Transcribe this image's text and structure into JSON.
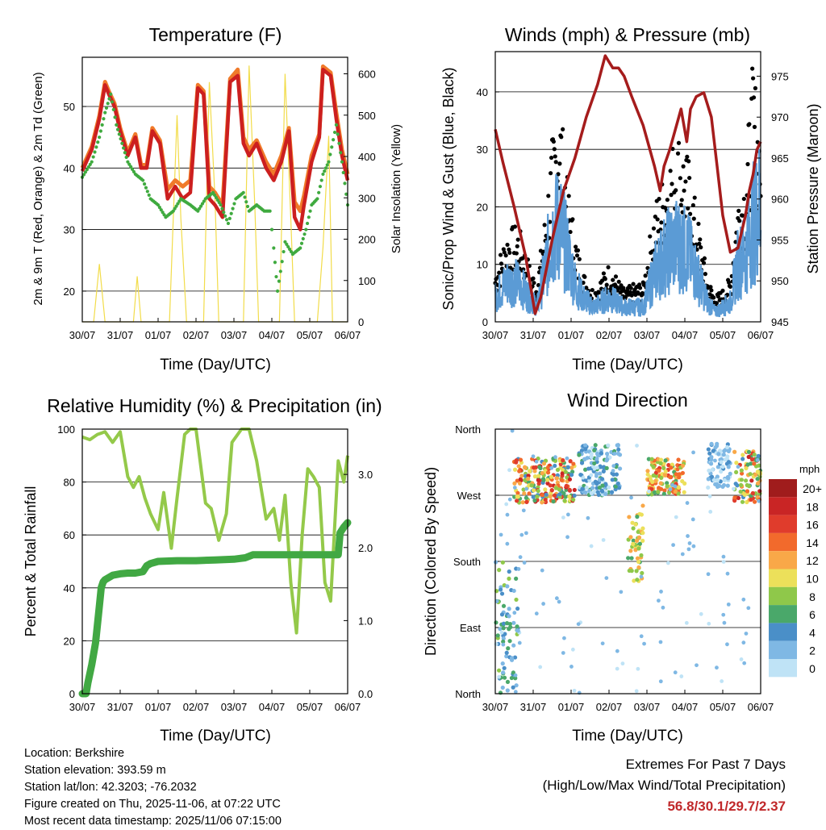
{
  "colors": {
    "t2m": "#cc1f1f",
    "t9m": "#f07a2a",
    "td": "#3faa3f",
    "solar": "#f2dc4a",
    "wind": "#5b9bd5",
    "gust": "#000000",
    "pressure": "#a51c1c",
    "rh": "#94c94a",
    "precip": "#41a843"
  },
  "panels": {
    "temperature": {
      "title": "Temperature (F)",
      "xlabel": "Time (Day/UTC)",
      "ylabel_left": "2m & 9m T (Red, Orange) & 2m Td (Green)",
      "ylabel_right": "Solar Insolation (Yellow)"
    },
    "winds": {
      "title": "Winds (mph) & Pressure (mb)",
      "xlabel": "Time (Day/UTC)",
      "ylabel_left": "Sonic/Prop Wind & Gust (Blue, Black)",
      "ylabel_right": "Station Pressure (Maroon)"
    },
    "humidity": {
      "title": "Relative Humidity (%) & Precipitation (in)",
      "xlabel": "Time (Day/UTC)",
      "ylabel_left": "Percent & Total Rainfall"
    },
    "direction": {
      "title": "Wind Direction",
      "xlabel": "Time (Day/UTC)",
      "ylabel_left": "Direction (Colored By Speed)",
      "legend_title": "mph"
    }
  },
  "chart_data": [
    {
      "type": "line",
      "title": "Temperature (F)",
      "xlabel": "Time (Day/UTC)",
      "x_ticks": [
        "30/07",
        "31/07",
        "01/07",
        "02/07",
        "03/07",
        "04/07",
        "05/07",
        "06/07"
      ],
      "xlim": [
        0,
        7
      ],
      "ylim": [
        15,
        58
      ],
      "y_ticks": [
        20,
        30,
        40,
        50
      ],
      "y2lim": [
        0,
        640
      ],
      "y2_ticks": [
        0,
        100,
        200,
        300,
        400,
        500,
        600
      ],
      "series": [
        {
          "name": "2m T",
          "axis": "left",
          "x": [
            0,
            0.25,
            0.45,
            0.6,
            0.7,
            0.85,
            1.0,
            1.2,
            1.4,
            1.55,
            1.7,
            1.85,
            2.05,
            2.25,
            2.45,
            2.65,
            2.85,
            3.05,
            3.2,
            3.35,
            3.5,
            3.7,
            3.9,
            4.1,
            4.25,
            4.4,
            4.6,
            4.85,
            5.05,
            5.25,
            5.45,
            5.6,
            5.75,
            5.85,
            6.05,
            6.25,
            6.35,
            6.55,
            6.7,
            6.85,
            7.0
          ],
          "y": [
            39.5,
            43,
            48,
            53.5,
            52,
            50,
            46,
            42,
            45,
            40,
            40,
            46,
            44,
            35,
            37,
            35,
            36,
            53,
            52,
            35,
            34,
            32,
            54,
            55,
            44,
            42,
            44,
            40,
            38,
            41,
            46,
            32,
            30,
            34,
            41,
            45,
            56,
            55,
            48,
            42,
            38
          ]
        },
        {
          "name": "9m T",
          "axis": "left",
          "x": [
            0,
            0.25,
            0.45,
            0.6,
            0.7,
            0.85,
            1.0,
            1.2,
            1.4,
            1.55,
            1.7,
            1.85,
            2.05,
            2.25,
            2.45,
            2.65,
            2.85,
            3.05,
            3.2,
            3.35,
            3.5,
            3.7,
            3.9,
            4.1,
            4.25,
            4.4,
            4.6,
            4.85,
            5.05,
            5.25,
            5.45,
            5.6,
            5.75,
            5.85,
            6.05,
            6.25,
            6.35,
            6.55,
            6.7,
            6.85,
            7.0
          ],
          "y": [
            40,
            43.5,
            48.5,
            54,
            52.5,
            50.5,
            46.5,
            42.5,
            45.5,
            40.5,
            40.5,
            46.5,
            44.5,
            36.5,
            38,
            37,
            38,
            53.5,
            52.5,
            37,
            36,
            34,
            54.5,
            56,
            45,
            43,
            44.5,
            41,
            39,
            42,
            46.5,
            34.5,
            33,
            35.5,
            42,
            45.5,
            56.5,
            55.5,
            49,
            43,
            39
          ]
        },
        {
          "name": "2m Td",
          "axis": "left",
          "x": [
            0,
            0.25,
            0.45,
            0.6,
            0.75,
            0.9,
            1.05,
            1.2,
            1.4,
            1.6,
            1.8,
            2.0,
            2.2,
            2.4,
            2.6,
            2.85,
            3.05,
            3.25,
            3.45,
            3.65,
            3.85,
            4.05,
            4.25,
            4.4,
            4.6,
            4.8,
            4.95,
            5.05,
            5.15,
            5.35,
            5.55,
            5.75,
            5.9,
            6.05,
            6.2,
            6.35,
            6.5,
            6.7,
            6.85,
            7.0
          ],
          "y": [
            38.5,
            41,
            45,
            49,
            52,
            47,
            44,
            41,
            39,
            38,
            35,
            34,
            32,
            33,
            35,
            34,
            33,
            35,
            36,
            34,
            31,
            35,
            36,
            33,
            34,
            33,
            33,
            27,
            20,
            28,
            26,
            27,
            30,
            34,
            35,
            39,
            41,
            47,
            41,
            34
          ]
        },
        {
          "name": "Solar Insolation",
          "axis": "right",
          "x": [
            0,
            0.3,
            0.45,
            0.6,
            1.0,
            1.35,
            1.45,
            1.55,
            2.0,
            2.3,
            2.5,
            2.6,
            2.75,
            3.0,
            3.2,
            3.35,
            3.5,
            3.6,
            3.75,
            4.0,
            4.25,
            4.4,
            4.55,
            4.65,
            4.8,
            5.0,
            5.2,
            5.35,
            5.5,
            5.6,
            5.75,
            6.0,
            6.2,
            6.35,
            6.5,
            6.6,
            6.8,
            7.0
          ],
          "y": [
            0,
            0,
            140,
            0,
            0,
            0,
            110,
            0,
            0,
            0,
            500,
            250,
            0,
            0,
            0,
            580,
            300,
            0,
            0,
            0,
            0,
            620,
            280,
            0,
            0,
            0,
            0,
            600,
            250,
            0,
            0,
            0,
            0,
            180,
            450,
            0,
            0,
            0
          ]
        }
      ]
    },
    {
      "type": "line",
      "title": "Winds (mph) & Pressure (mb)",
      "xlabel": "Time (Day/UTC)",
      "x_ticks": [
        "30/07",
        "31/07",
        "01/07",
        "02/07",
        "03/07",
        "04/07",
        "05/07",
        "06/07"
      ],
      "xlim": [
        0,
        7
      ],
      "ylim": [
        0,
        47
      ],
      "y_ticks": [
        0,
        10,
        20,
        30,
        40
      ],
      "y2lim": [
        945,
        978
      ],
      "y2_ticks": [
        945,
        950,
        955,
        960,
        965,
        970,
        975
      ],
      "series": [
        {
          "name": "Wind",
          "axis": "left",
          "x": [
            0,
            0.3,
            0.6,
            0.9,
            1.1,
            1.3,
            1.5,
            1.7,
            1.9,
            2.1,
            2.3,
            2.6,
            3.0,
            3.4,
            3.7,
            3.9,
            4.2,
            4.5,
            4.8,
            5.1,
            5.4,
            5.6,
            5.8,
            6.0,
            6.2,
            6.4,
            6.6,
            6.8,
            7.0
          ],
          "y": [
            5,
            8,
            8,
            5,
            3,
            10,
            18,
            20,
            14,
            8,
            5,
            3,
            5,
            3,
            3,
            3,
            10,
            14,
            16,
            14,
            8,
            4,
            2,
            3,
            4,
            12,
            14,
            20,
            24
          ]
        },
        {
          "name": "Gust",
          "axis": "left",
          "x": [
            0,
            0.3,
            0.6,
            0.9,
            1.1,
            1.3,
            1.5,
            1.7,
            1.9,
            2.1,
            2.3,
            2.6,
            3.0,
            3.4,
            3.7,
            3.9,
            4.2,
            4.5,
            4.8,
            5.1,
            5.4,
            5.6,
            5.8,
            6.0,
            6.2,
            6.4,
            6.6,
            6.8,
            7.0
          ],
          "y": [
            8,
            14,
            15,
            9,
            6,
            16,
            28,
            35,
            22,
            14,
            8,
            5,
            9,
            5,
            6,
            6,
            18,
            24,
            30,
            25,
            14,
            7,
            4,
            5,
            7,
            20,
            24,
            40,
            30
          ]
        },
        {
          "name": "Station Pressure",
          "axis": "right",
          "x": [
            0,
            0.2,
            0.5,
            0.8,
            1.05,
            1.2,
            1.5,
            1.8,
            2.1,
            2.4,
            2.7,
            2.9,
            3.1,
            3.25,
            3.4,
            3.6,
            3.9,
            4.2,
            4.35,
            4.45,
            4.6,
            4.75,
            4.9,
            5.05,
            5.15,
            5.3,
            5.5,
            5.7,
            5.85,
            6.0,
            6.2,
            6.4,
            6.6,
            6.7,
            6.8,
            6.9,
            7.0
          ],
          "y": [
            968.5,
            964.5,
            959,
            953,
            946,
            948,
            955,
            961,
            965,
            970,
            974,
            977.5,
            976,
            976,
            975,
            972.5,
            969,
            964,
            961,
            964,
            966,
            968.5,
            971,
            967,
            971,
            972.5,
            973,
            970,
            964,
            958,
            953.5,
            954,
            958,
            961,
            963,
            966,
            967
          ]
        }
      ]
    },
    {
      "type": "line",
      "title": "Relative Humidity (%) & Precipitation (in)",
      "xlabel": "Time (Day/UTC)",
      "x_ticks": [
        "30/07",
        "31/07",
        "01/07",
        "02/07",
        "03/07",
        "04/07",
        "05/07",
        "06/07"
      ],
      "xlim": [
        0,
        7
      ],
      "ylim": [
        0,
        100
      ],
      "y_ticks": [
        0,
        20,
        40,
        60,
        80,
        100
      ],
      "y2lim": [
        0,
        3.62
      ],
      "y2_ticks": [
        0.0,
        1.0,
        2.0,
        3.0
      ],
      "series": [
        {
          "name": "Relative Humidity",
          "axis": "left",
          "x": [
            0,
            0.2,
            0.4,
            0.6,
            0.8,
            1.0,
            1.2,
            1.35,
            1.5,
            1.65,
            1.8,
            2.0,
            2.15,
            2.35,
            2.5,
            2.7,
            2.85,
            3.0,
            3.25,
            3.4,
            3.6,
            3.8,
            3.95,
            4.2,
            4.4,
            4.6,
            4.85,
            5.05,
            5.2,
            5.35,
            5.5,
            5.65,
            5.8,
            5.95,
            6.1,
            6.25,
            6.4,
            6.55,
            6.75,
            6.9,
            7.0
          ],
          "y": [
            97,
            96,
            98,
            99,
            95,
            99,
            82,
            78,
            82,
            74,
            68,
            62,
            76,
            55,
            74,
            98,
            100,
            100,
            72,
            70,
            58,
            68,
            95,
            100,
            100,
            88,
            66,
            70,
            58,
            75,
            42,
            23,
            60,
            85,
            82,
            78,
            42,
            35,
            88,
            80,
            90
          ]
        },
        {
          "name": "Total Precipitation",
          "axis": "right",
          "x": [
            0,
            0.1,
            0.15,
            0.25,
            0.35,
            0.45,
            0.5,
            0.55,
            0.6,
            0.8,
            1.0,
            1.2,
            1.4,
            1.6,
            1.7,
            1.8,
            2.0,
            2.5,
            3.0,
            3.5,
            4.0,
            4.3,
            4.5,
            4.8,
            5.0,
            5.5,
            6.0,
            6.5,
            6.75,
            6.8,
            6.9,
            7.0
          ],
          "y": [
            0.0,
            0.0,
            0.15,
            0.4,
            0.7,
            1.2,
            1.45,
            1.53,
            1.56,
            1.62,
            1.64,
            1.65,
            1.65,
            1.67,
            1.75,
            1.78,
            1.81,
            1.82,
            1.82,
            1.83,
            1.84,
            1.86,
            1.9,
            1.9,
            1.9,
            1.9,
            1.9,
            1.9,
            1.9,
            2.2,
            2.28,
            2.34
          ]
        }
      ]
    },
    {
      "type": "scatter",
      "title": "Wind Direction",
      "xlabel": "Time (Day/UTC)",
      "ylabel": "Direction (Colored By Speed)",
      "x_ticks": [
        "30/07",
        "31/07",
        "01/07",
        "02/07",
        "03/07",
        "04/07",
        "05/07",
        "06/07"
      ],
      "xlim": [
        0,
        7
      ],
      "y_labels": [
        "North",
        "East",
        "South",
        "West",
        "North"
      ],
      "ylim": [
        0,
        360
      ],
      "legend": {
        "title": "mph",
        "labels": [
          "20+",
          "18",
          "16",
          "14",
          "12",
          "10",
          "8",
          "6",
          "4",
          "2",
          "0"
        ],
        "colors": [
          "#a01c1c",
          "#c92525",
          "#e03c2c",
          "#f26a2c",
          "#f9a848",
          "#ece05a",
          "#8fc84a",
          "#4aa86a",
          "#4a8fc8",
          "#7fb8e4",
          "#bfe3f6"
        ]
      },
      "clusters": [
        {
          "x": [
            0.0,
            0.6
          ],
          "dir": [
            0,
            180
          ],
          "speed": [
            2,
            8
          ]
        },
        {
          "x": [
            0.5,
            2.1
          ],
          "dir": [
            260,
            320
          ],
          "speed": [
            4,
            18
          ]
        },
        {
          "x": [
            2.2,
            3.3
          ],
          "dir": [
            270,
            340
          ],
          "speed": [
            0,
            6
          ]
        },
        {
          "x": [
            3.5,
            3.9
          ],
          "dir": [
            150,
            260
          ],
          "speed": [
            6,
            12
          ]
        },
        {
          "x": [
            4.0,
            5.0
          ],
          "dir": [
            270,
            320
          ],
          "speed": [
            6,
            16
          ]
        },
        {
          "x": [
            5.6,
            6.2
          ],
          "dir": [
            280,
            340
          ],
          "speed": [
            0,
            4
          ]
        },
        {
          "x": [
            6.3,
            7.0
          ],
          "dir": [
            260,
            330
          ],
          "speed": [
            4,
            18
          ]
        }
      ]
    }
  ],
  "info": {
    "location": "Location: Berkshire",
    "elevation": "Station elevation: 393.59 m",
    "latlon": "Station lat/lon: 42.3203; -76.2032",
    "created": "Figure created on Thu, 2025-11-06, at 07:22 UTC",
    "recent": "Most recent data timestamp: 2025/11/06 07:15:00"
  },
  "extremes": {
    "line1": "Extremes For Past 7 Days",
    "line2": "(High/Low/Max Wind/Total Precipitation)",
    "values": "56.8/30.1/29.7/2.37"
  }
}
